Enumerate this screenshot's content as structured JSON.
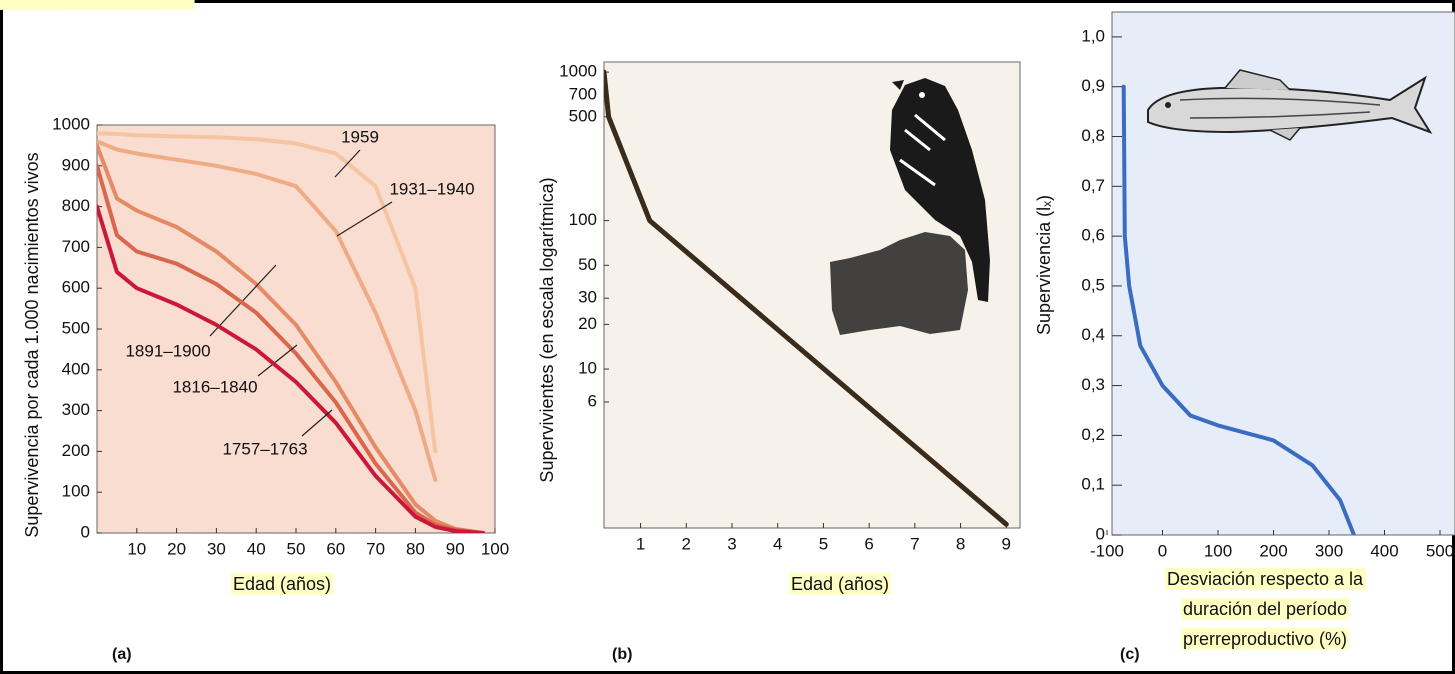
{
  "chart_data": [
    {
      "type": "line",
      "label": "(a)",
      "ylabel": "Supervivencia por cada 1.000 nacimientos vivos",
      "xlabel": "Edad (años)",
      "background": "#f8ddd0",
      "xlim": [
        0,
        100
      ],
      "ylim": [
        0,
        1000
      ],
      "xticks": [
        10,
        20,
        30,
        40,
        50,
        60,
        70,
        80,
        90,
        100
      ],
      "yticks": [
        0,
        100,
        200,
        300,
        400,
        500,
        600,
        700,
        800,
        900,
        1000
      ],
      "x": [
        0,
        5,
        10,
        20,
        30,
        40,
        50,
        60,
        70,
        80,
        85,
        90,
        97
      ],
      "series": [
        {
          "name": "1959",
          "color": "#f5c4a3",
          "values": [
            980,
            978,
            975,
            972,
            970,
            965,
            955,
            930,
            850,
            600,
            200,
            null,
            null
          ]
        },
        {
          "name": "1931–1940",
          "color": "#efab86",
          "values": [
            960,
            940,
            930,
            915,
            900,
            880,
            850,
            740,
            540,
            300,
            130,
            null,
            null
          ]
        },
        {
          "name": "1891–1900",
          "color": "#e58a66",
          "values": [
            950,
            820,
            790,
            750,
            690,
            610,
            510,
            370,
            210,
            70,
            30,
            10,
            0
          ]
        },
        {
          "name": "1816–1840",
          "color": "#d9664d",
          "values": [
            900,
            730,
            690,
            660,
            610,
            540,
            440,
            320,
            170,
            50,
            20,
            8,
            0
          ]
        },
        {
          "name": "1757–1763",
          "color": "#cc1838",
          "values": [
            800,
            640,
            600,
            560,
            510,
            450,
            370,
            270,
            140,
            40,
            15,
            5,
            0
          ]
        }
      ]
    },
    {
      "type": "line",
      "label": "(b)",
      "ylabel": "Supervivientes (en escala logarítmica)",
      "xlabel": "Edad (años)",
      "background": "#f6f2ea",
      "yscale": "log",
      "xlim": [
        0.2,
        9.3
      ],
      "ylim": [
        0.85,
        1170
      ],
      "xticks": [
        1,
        2,
        3,
        4,
        5,
        6,
        7,
        8,
        9
      ],
      "yticks": [
        6,
        10,
        20,
        30,
        50,
        100,
        500,
        700,
        1000
      ],
      "x": [
        0.2,
        0.3,
        1.2,
        9
      ],
      "series": [
        {
          "color": "#3b2b1b",
          "values": [
            1000,
            500,
            100,
            0.9
          ]
        }
      ]
    },
    {
      "type": "line",
      "label": "(c)",
      "ylabel": "Supervivencia (lₓ)",
      "xlabel": [
        "Desviación respecto a la",
        "duración del período",
        "prerreproductivo (%)"
      ],
      "background": "#e7edf8",
      "xlim": [
        -91,
        527
      ],
      "ylim": [
        0,
        1.05
      ],
      "xticks": [
        -100,
        0,
        100,
        200,
        300,
        400,
        500
      ],
      "yticks": [
        0,
        {
          "value": 0.1,
          "label": "0,1"
        },
        {
          "value": 0.2,
          "label": "0,2"
        },
        {
          "value": 0.3,
          "label": "0,3"
        },
        {
          "value": 0.4,
          "label": "0,4"
        },
        {
          "value": 0.5,
          "label": "0,5"
        },
        {
          "value": 0.6,
          "label": "0,6"
        },
        {
          "value": 0.7,
          "label": "0,7"
        },
        {
          "value": 0.8,
          "label": "0,8"
        },
        {
          "value": 0.9,
          "label": "0,9"
        },
        {
          "value": 1.0,
          "label": "1,0"
        }
      ],
      "x": [
        -70,
        -68,
        -60,
        -40,
        0,
        50,
        100,
        200,
        270,
        320,
        345
      ],
      "series": [
        {
          "color": "#3a6cc2",
          "values": [
            0.9,
            0.6,
            0.5,
            0.38,
            0.3,
            0.24,
            0.22,
            0.19,
            0.14,
            0.07,
            0
          ]
        }
      ]
    }
  ]
}
